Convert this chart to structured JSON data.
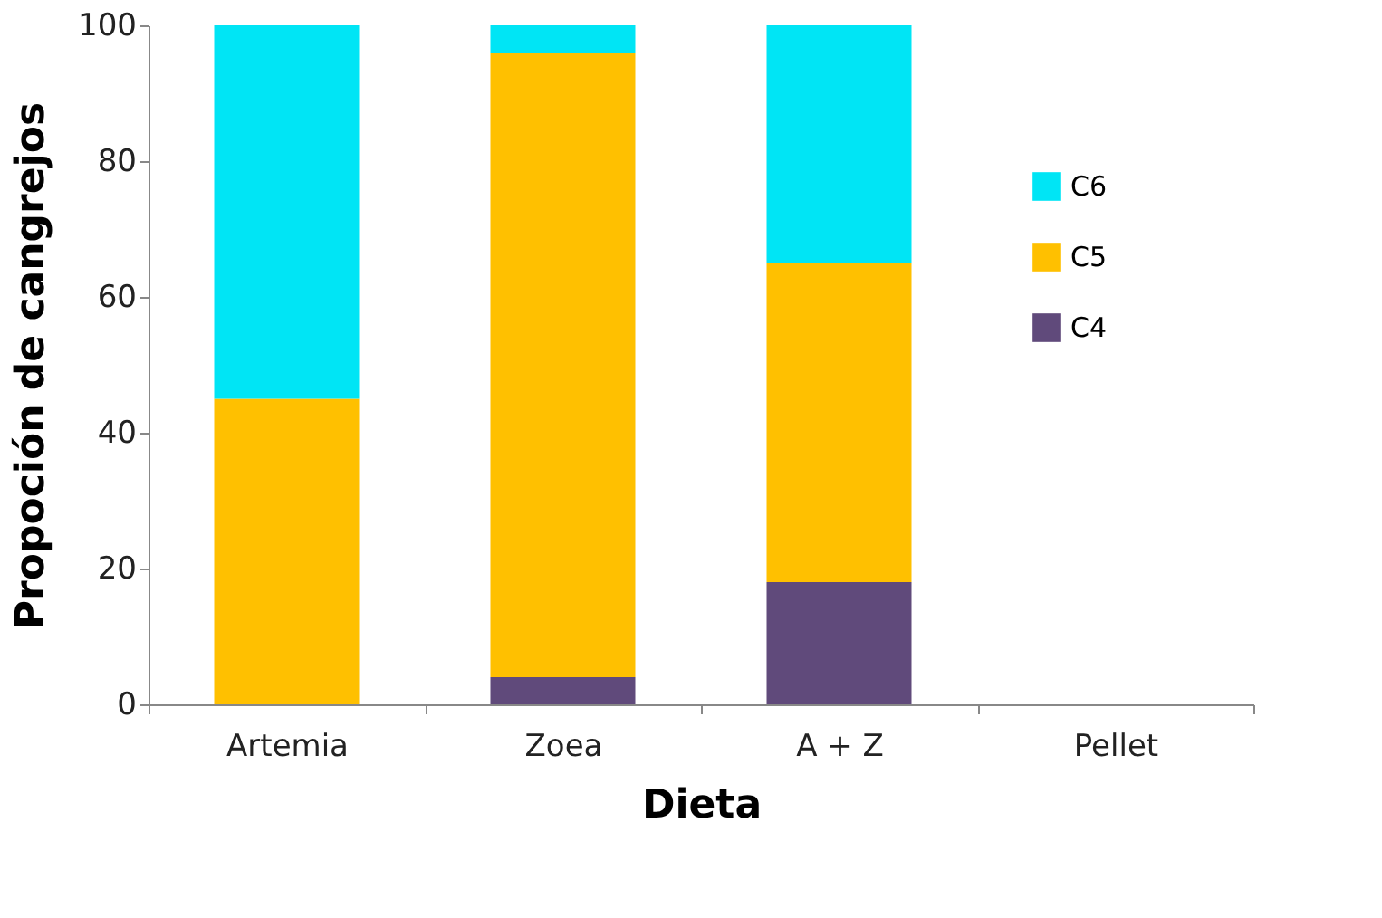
{
  "chart_data": {
    "type": "bar",
    "stacked": true,
    "xlabel": "Dieta",
    "ylabel": "Propoción de cangrejos",
    "categories": [
      "Artemia",
      "Zoea",
      "A + Z",
      "Pellet"
    ],
    "series": [
      {
        "name": "C4",
        "color": "#604a7b",
        "values": [
          0,
          4,
          18,
          0
        ]
      },
      {
        "name": "C5",
        "color": "#ffc000",
        "values": [
          45,
          92,
          47,
          0
        ]
      },
      {
        "name": "C6",
        "color": "#00e5f5",
        "values": [
          55,
          4,
          35,
          0
        ]
      }
    ],
    "ylim": [
      0,
      100
    ],
    "yticks": [
      0,
      20,
      40,
      60,
      80,
      100
    ],
    "grid": false,
    "legend": "top right"
  }
}
